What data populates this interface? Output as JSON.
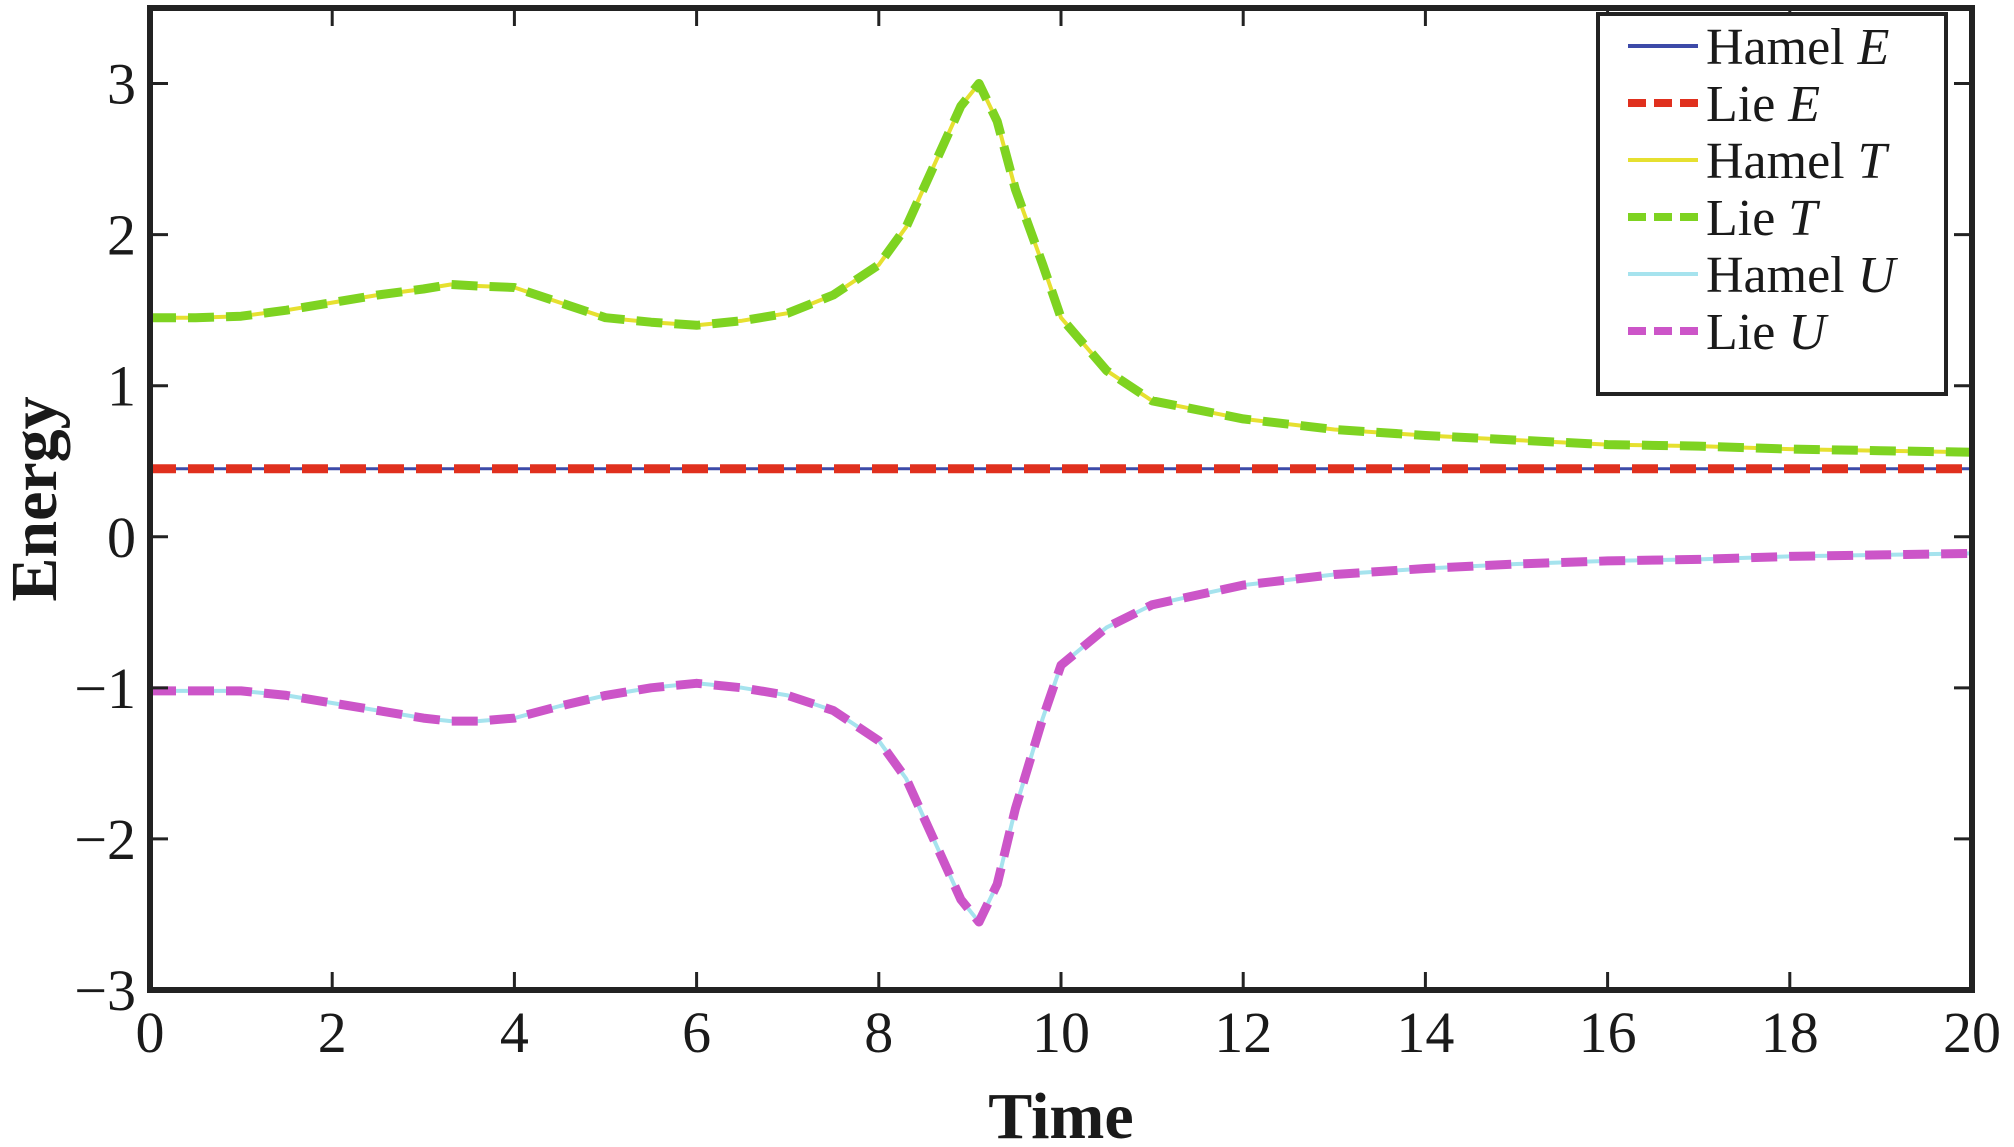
{
  "chart_data": {
    "type": "line",
    "xlabel": "Time",
    "ylabel": "Energy",
    "xlim": [
      0,
      20
    ],
    "ylim": [
      -3,
      3.5
    ],
    "xticks": [
      "0",
      "2",
      "4",
      "6",
      "8",
      "10",
      "12",
      "14",
      "16",
      "18",
      "20"
    ],
    "yticks": [
      "−3",
      "−2",
      "−1",
      "0",
      "1",
      "2",
      "3"
    ],
    "grid": false,
    "legend": "top-right",
    "series": [
      {
        "name": "Hamel E",
        "label_base": "Hamel ",
        "label_var": "E",
        "color": "#3d4aa8",
        "dash": "solid",
        "width": 3,
        "x": [
          0,
          20
        ],
        "y": [
          0.45,
          0.45
        ]
      },
      {
        "name": "Lie E",
        "label_base": "Lie ",
        "label_var": "E",
        "color": "#e0301e",
        "dash": "dashed",
        "width": 9,
        "x": [
          0,
          20
        ],
        "y": [
          0.45,
          0.45
        ]
      },
      {
        "name": "Hamel T",
        "label_base": "Hamel ",
        "label_var": "T",
        "color": "#e6e030",
        "dash": "solid",
        "width": 4,
        "x": [
          0,
          0.5,
          1,
          1.5,
          2,
          2.5,
          3,
          3.3,
          3.6,
          4,
          4.5,
          5,
          5.5,
          6,
          6.5,
          7,
          7.5,
          8,
          8.3,
          8.6,
          8.9,
          9.1,
          9.3,
          9.5,
          9.8,
          10,
          10.5,
          11,
          12,
          13,
          14,
          15,
          16,
          17,
          18,
          19,
          20
        ],
        "y": [
          1.45,
          1.45,
          1.46,
          1.5,
          1.55,
          1.6,
          1.64,
          1.67,
          1.66,
          1.65,
          1.55,
          1.45,
          1.42,
          1.4,
          1.43,
          1.48,
          1.6,
          1.8,
          2.05,
          2.45,
          2.85,
          3.0,
          2.75,
          2.3,
          1.8,
          1.45,
          1.1,
          0.9,
          0.78,
          0.71,
          0.67,
          0.64,
          0.61,
          0.6,
          0.58,
          0.57,
          0.56
        ]
      },
      {
        "name": "Lie T",
        "label_base": "Lie ",
        "label_var": "T",
        "color": "#7ed321",
        "dash": "dashed",
        "width": 9,
        "x": [
          0,
          0.5,
          1,
          1.5,
          2,
          2.5,
          3,
          3.3,
          3.6,
          4,
          4.5,
          5,
          5.5,
          6,
          6.5,
          7,
          7.5,
          8,
          8.3,
          8.6,
          8.9,
          9.1,
          9.3,
          9.5,
          9.8,
          10,
          10.5,
          11,
          12,
          13,
          14,
          15,
          16,
          17,
          18,
          19,
          20
        ],
        "y": [
          1.45,
          1.45,
          1.46,
          1.5,
          1.55,
          1.6,
          1.64,
          1.67,
          1.66,
          1.65,
          1.55,
          1.45,
          1.42,
          1.4,
          1.43,
          1.48,
          1.6,
          1.8,
          2.05,
          2.45,
          2.85,
          3.0,
          2.75,
          2.3,
          1.8,
          1.45,
          1.1,
          0.9,
          0.78,
          0.71,
          0.67,
          0.64,
          0.61,
          0.6,
          0.58,
          0.57,
          0.56
        ]
      },
      {
        "name": "Hamel U",
        "label_base": "Hamel ",
        "label_var": "U",
        "color": "#a6e3ee",
        "dash": "solid",
        "width": 4,
        "x": [
          0,
          0.5,
          1,
          1.5,
          2,
          2.5,
          3,
          3.3,
          3.6,
          4,
          4.5,
          5,
          5.5,
          6,
          6.5,
          7,
          7.5,
          8,
          8.3,
          8.6,
          8.9,
          9.1,
          9.3,
          9.5,
          9.8,
          10,
          10.5,
          11,
          12,
          13,
          14,
          15,
          16,
          17,
          18,
          19,
          20
        ],
        "y": [
          -1.02,
          -1.02,
          -1.02,
          -1.05,
          -1.1,
          -1.15,
          -1.2,
          -1.22,
          -1.22,
          -1.2,
          -1.12,
          -1.05,
          -1.0,
          -0.97,
          -1.0,
          -1.05,
          -1.15,
          -1.35,
          -1.6,
          -2.0,
          -2.4,
          -2.55,
          -2.3,
          -1.8,
          -1.2,
          -0.85,
          -0.6,
          -0.45,
          -0.32,
          -0.25,
          -0.21,
          -0.18,
          -0.16,
          -0.15,
          -0.13,
          -0.12,
          -0.11
        ]
      },
      {
        "name": "Lie U",
        "label_base": "Lie ",
        "label_var": "U",
        "color": "#cc55c8",
        "dash": "dashed",
        "width": 9,
        "x": [
          0,
          0.5,
          1,
          1.5,
          2,
          2.5,
          3,
          3.3,
          3.6,
          4,
          4.5,
          5,
          5.5,
          6,
          6.5,
          7,
          7.5,
          8,
          8.3,
          8.6,
          8.9,
          9.1,
          9.3,
          9.5,
          9.8,
          10,
          10.5,
          11,
          12,
          13,
          14,
          15,
          16,
          17,
          18,
          19,
          20
        ],
        "y": [
          -1.02,
          -1.02,
          -1.02,
          -1.05,
          -1.1,
          -1.15,
          -1.2,
          -1.22,
          -1.22,
          -1.2,
          -1.12,
          -1.05,
          -1.0,
          -0.97,
          -1.0,
          -1.05,
          -1.15,
          -1.35,
          -1.6,
          -2.0,
          -2.4,
          -2.55,
          -2.3,
          -1.8,
          -1.2,
          -0.85,
          -0.6,
          -0.45,
          -0.32,
          -0.25,
          -0.21,
          -0.18,
          -0.16,
          -0.15,
          -0.13,
          -0.12,
          -0.11
        ]
      }
    ]
  }
}
